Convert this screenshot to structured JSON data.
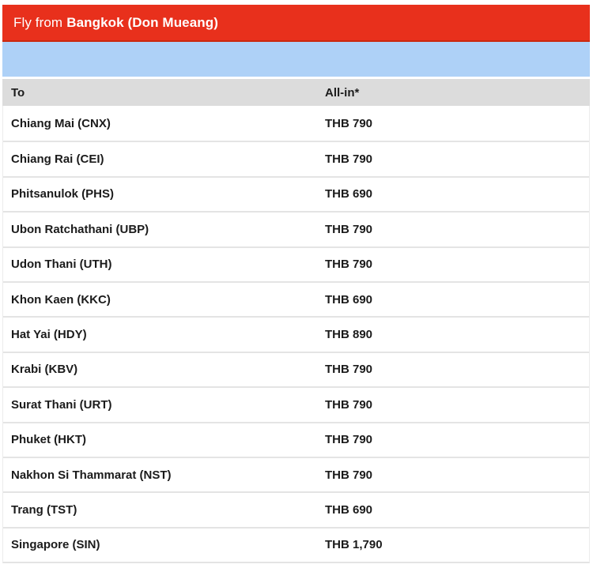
{
  "banner": {
    "prefix": "Fly from",
    "origin": "Bangkok (Don Mueang)"
  },
  "colors": {
    "banner_red": "#e8301c",
    "banner_red_dark_edge": "#c9290f",
    "info_strip_blue": "#aed1f7",
    "header_gray": "#dcdcdc",
    "row_separator_gray": "#e4e4e4",
    "text_dark": "#1b1b1b",
    "banner_text_white": "#ffffff"
  },
  "table": {
    "columns": {
      "to": "To",
      "price": "All-in*"
    },
    "rows": [
      {
        "to": "Chiang Mai (CNX)",
        "price": "THB 790"
      },
      {
        "to": "Chiang Rai (CEI)",
        "price": "THB 790"
      },
      {
        "to": "Phitsanulok (PHS)",
        "price": "THB 690"
      },
      {
        "to": "Ubon Ratchathani (UBP)",
        "price": "THB 790"
      },
      {
        "to": "Udon Thani (UTH)",
        "price": "THB 790"
      },
      {
        "to": "Khon Kaen (KKC)",
        "price": "THB 690"
      },
      {
        "to": "Hat Yai (HDY)",
        "price": "THB 890"
      },
      {
        "to": "Krabi (KBV)",
        "price": "THB 790"
      },
      {
        "to": "Surat Thani (URT)",
        "price": "THB 790"
      },
      {
        "to": "Phuket (HKT)",
        "price": "THB 790"
      },
      {
        "to": "Nakhon Si Thammarat (NST)",
        "price": "THB 790"
      },
      {
        "to": "Trang (TST)",
        "price": "THB 690"
      },
      {
        "to": "Singapore (SIN)",
        "price": "THB 1,790"
      }
    ]
  }
}
